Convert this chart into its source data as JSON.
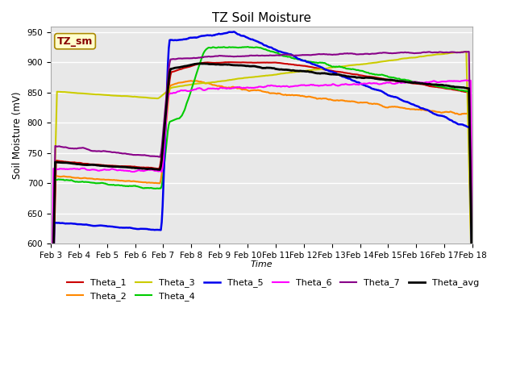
{
  "title": "TZ Soil Moisture",
  "xlabel": "Time",
  "ylabel": "Soil Moisture (mV)",
  "ylim": [
    600,
    960
  ],
  "yticks": [
    600,
    650,
    700,
    750,
    800,
    850,
    900,
    950
  ],
  "background_color": "#e8e8e8",
  "legend_label": "TZ_sm",
  "series_colors": {
    "Theta_1": "#cc0000",
    "Theta_2": "#ff8800",
    "Theta_3": "#cccc00",
    "Theta_4": "#00cc00",
    "Theta_5": "#0000ee",
    "Theta_6": "#ff00ff",
    "Theta_7": "#880088",
    "Theta_avg": "#000000"
  },
  "date_labels": [
    "Feb 3",
    "Feb 4",
    "Feb 5",
    "Feb 6",
    "Feb 7",
    "Feb 8",
    "Feb 9",
    "Feb 10",
    "Feb 11",
    "Feb 12",
    "Feb 13",
    "Feb 14",
    "Feb 15",
    "Feb 16",
    "Feb 17",
    "Feb 18"
  ]
}
